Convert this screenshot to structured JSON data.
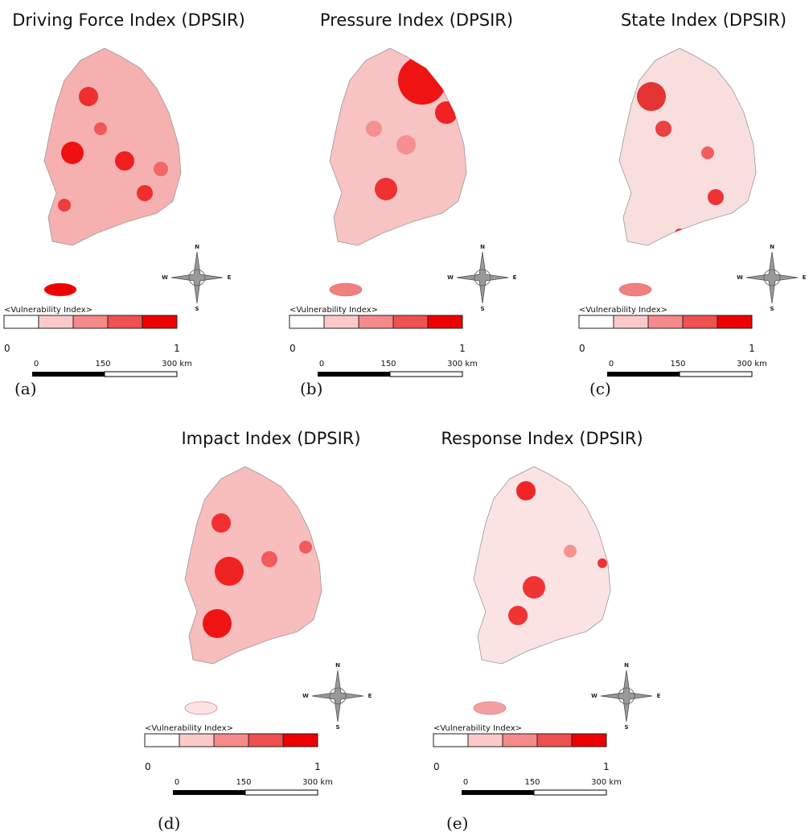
{
  "legend_colors": [
    "#ffffff",
    "#fcc9c9",
    "#f58a8a",
    "#ef5050",
    "#ee0000"
  ],
  "panels": [
    {
      "title": "Driving Force Index (DPSIR)",
      "legend_title": "<Vulnerability Index>",
      "legend_min": "0",
      "legend_max": "1",
      "scale_labels": [
        "0",
        "150",
        "300 km"
      ],
      "compass": [
        "N",
        "S",
        "W",
        "E"
      ],
      "caption": "(a)"
    },
    {
      "title": "Pressure Index (DPSIR)",
      "legend_title": "<Vulnerability Index>",
      "legend_min": "0",
      "legend_max": "1",
      "scale_labels": [
        "0",
        "150",
        "300 km"
      ],
      "compass": [
        "N",
        "S",
        "W",
        "E"
      ],
      "caption": "(b)"
    },
    {
      "title": "State Index (DPSIR)",
      "legend_title": "<Vulnerability Index>",
      "legend_min": "0",
      "legend_max": "1",
      "scale_labels": [
        "0",
        "150",
        "300 km"
      ],
      "compass": [
        "N",
        "S",
        "W",
        "E"
      ],
      "caption": "(c)"
    },
    {
      "title": "Impact Index (DPSIR)",
      "legend_title": "<Vulnerability Index>",
      "legend_min": "0",
      "legend_max": "1",
      "scale_labels": [
        "0",
        "150",
        "300 km"
      ],
      "compass": [
        "N",
        "S",
        "W",
        "E"
      ],
      "caption": "(d)"
    },
    {
      "title": "Response Index (DPSIR)",
      "legend_title": "<Vulnerability Index>",
      "legend_min": "0",
      "legend_max": "1",
      "scale_labels": [
        "0",
        "150",
        "300 km"
      ],
      "compass": [
        "N",
        "S",
        "W",
        "E"
      ],
      "caption": "(e)"
    }
  ]
}
